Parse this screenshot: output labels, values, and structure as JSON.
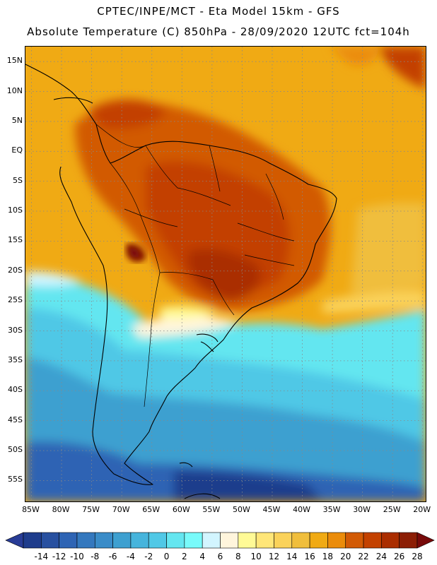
{
  "header": {
    "line1": "CPTEC/INPE/MCT -   Eta Model 15km - GFS",
    "line2": "Absolute Temperature (C) 850hPa - 28/09/2020 12UTC fct=104h"
  },
  "map": {
    "lat_labels": [
      "15N",
      "10N",
      "5N",
      "EQ",
      "5S",
      "10S",
      "15S",
      "20S",
      "25S",
      "30S",
      "35S",
      "40S",
      "45S",
      "50S",
      "55S"
    ],
    "lat_values": [
      15,
      10,
      5,
      0,
      -5,
      -10,
      -15,
      -20,
      -25,
      -30,
      -35,
      -40,
      -45,
      -50,
      -55
    ],
    "lon_labels": [
      "85W",
      "80W",
      "75W",
      "70W",
      "65W",
      "60W",
      "55W",
      "50W",
      "45W",
      "40W",
      "35W",
      "30W",
      "25W",
      "20W"
    ],
    "lon_values": [
      -85,
      -80,
      -75,
      -70,
      -65,
      -60,
      -55,
      -50,
      -45,
      -40,
      -35,
      -30,
      -25,
      -20
    ],
    "extent": {
      "lon_min": -86,
      "lon_max": -19.5,
      "lat_min": -58.5,
      "lat_max": 17.5
    }
  },
  "colorbar": {
    "labels": [
      "-14",
      "-12",
      "-10",
      "-8",
      "-6",
      "-4",
      "-2",
      "0",
      "2",
      "4",
      "6",
      "8",
      "10",
      "12",
      "14",
      "16",
      "18",
      "20",
      "22",
      "24",
      "26",
      "28"
    ],
    "colors": [
      "#1e3c8c",
      "#2850a0",
      "#2e64b4",
      "#3478be",
      "#3a8cc8",
      "#3ea0d0",
      "#46b4dc",
      "#50c8e6",
      "#64e6f0",
      "#78fafa",
      "#d2f5ff",
      "#fff5dc",
      "#fffa96",
      "#ffe678",
      "#fad25a",
      "#f0be3c",
      "#f0aa14",
      "#eb8c0a",
      "#d25a05",
      "#c34100",
      "#aa2d00",
      "#8c1e05"
    ],
    "under_color": "#283c96",
    "over_color": "#780a0a"
  }
}
